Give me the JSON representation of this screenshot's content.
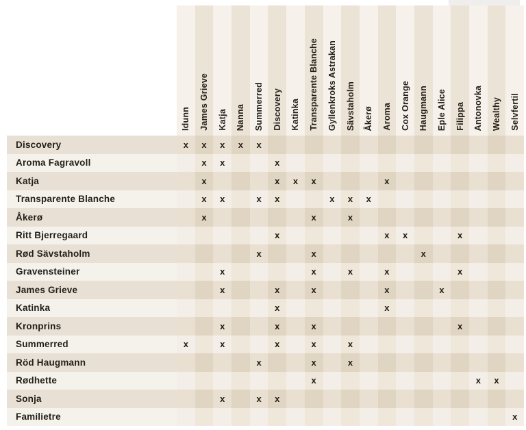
{
  "chart_data": {
    "type": "table",
    "description": "Apple variety pollination compatibility matrix; x marks indicate compatible pollinator columns for each row variety",
    "columns": [
      "Idunn",
      "James Grieve",
      "Katja",
      "Nanna",
      "Summerred",
      "Discovery",
      "Katinka",
      "Transparente Blanche",
      "Gyllenkroks Astrakan",
      "Sävstaholm",
      "Åkerø",
      "Aroma",
      "Cox Orange",
      "Haugmann",
      "Eple Alice",
      "Filippa",
      "Antonovka",
      "Wealthy",
      "Selvfertil"
    ],
    "rows": [
      {
        "label": "Discovery",
        "marks": [
          "Idunn",
          "James Grieve",
          "Katja",
          "Nanna",
          "Summerred"
        ]
      },
      {
        "label": "Aroma Fagravoll",
        "marks": [
          "James Grieve",
          "Katja",
          "Discovery"
        ]
      },
      {
        "label": "Katja",
        "marks": [
          "James Grieve",
          "Discovery",
          "Katinka",
          "Transparente Blanche",
          "Aroma"
        ]
      },
      {
        "label": "Transparente Blanche",
        "marks": [
          "James Grieve",
          "Katja",
          "Summerred",
          "Discovery",
          "Gyllenkroks Astrakan",
          "Sävstaholm",
          "Åkerø"
        ]
      },
      {
        "label": "Åkerø",
        "marks": [
          "James Grieve",
          "Transparente Blanche",
          "Sävstaholm"
        ]
      },
      {
        "label": "Ritt Bjerregaard",
        "marks": [
          "Discovery",
          "Aroma",
          "Cox Orange",
          "Filippa"
        ]
      },
      {
        "label": "Rød Sävstaholm",
        "marks": [
          "Summerred",
          "Transparente Blanche",
          "Haugmann"
        ]
      },
      {
        "label": "Gravensteiner",
        "marks": [
          "Katja",
          "Transparente Blanche",
          "Sävstaholm",
          "Aroma",
          "Filippa"
        ]
      },
      {
        "label": "James Grieve",
        "marks": [
          "Katja",
          "Discovery",
          "Transparente Blanche",
          "Aroma",
          "Eple Alice"
        ]
      },
      {
        "label": "Katinka",
        "marks": [
          "Discovery",
          "Aroma"
        ]
      },
      {
        "label": "Kronprins",
        "marks": [
          "Katja",
          "Discovery",
          "Transparente Blanche",
          "Filippa"
        ]
      },
      {
        "label": "Summerred",
        "marks": [
          "Idunn",
          "Katja",
          "Discovery",
          "Transparente Blanche",
          "Sävstaholm"
        ]
      },
      {
        "label": "Röd Haugmann",
        "marks": [
          "Summerred",
          "Transparente Blanche",
          "Sävstaholm"
        ]
      },
      {
        "label": "Rødhette",
        "marks": [
          "Transparente Blanche",
          "Antonovka",
          "Wealthy"
        ]
      },
      {
        "label": "Sonja",
        "marks": [
          "Katja",
          "Summerred",
          "Discovery"
        ]
      },
      {
        "label": "Familietre",
        "marks": [
          "Selvfertil"
        ]
      }
    ]
  },
  "marks": {
    "glyph": "x"
  },
  "colors": {
    "page_bg": "#ffffff",
    "text": "#221e18",
    "mark_color": "#221d15",
    "header_col_light": "#f6f2eb",
    "header_col_dark": "#ebe3d6",
    "cell_light_light": "#f3efe8",
    "cell_light_dark": "#eee7da",
    "cell_dark_light": "#e9e0d2",
    "cell_dark_dark": "#e0d5c3",
    "label_row_dark": "#e8e0d4",
    "label_row_light": "#f5f2ec",
    "artifact_strip": "#f0eeec"
  }
}
